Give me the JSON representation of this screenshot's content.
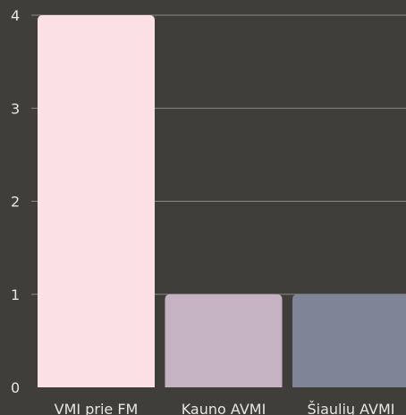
{
  "chart_data": {
    "type": "bar",
    "categories": [
      "VMI prie FM",
      "Kauno AVMI",
      "Šiaulių AVMI"
    ],
    "values": [
      4,
      1,
      1
    ],
    "colors": [
      "#fce1e4",
      "#c5b3c4",
      "#7f8596"
    ],
    "title": "",
    "xlabel": "",
    "ylabel": "",
    "ylim": [
      0,
      4
    ],
    "yticks": [
      0,
      1,
      2,
      3,
      4
    ],
    "grid": true,
    "legend": "none"
  },
  "colors": {
    "background": "#3f3e3a",
    "gridline": "#8a8883",
    "text": "#e8e6e2"
  }
}
